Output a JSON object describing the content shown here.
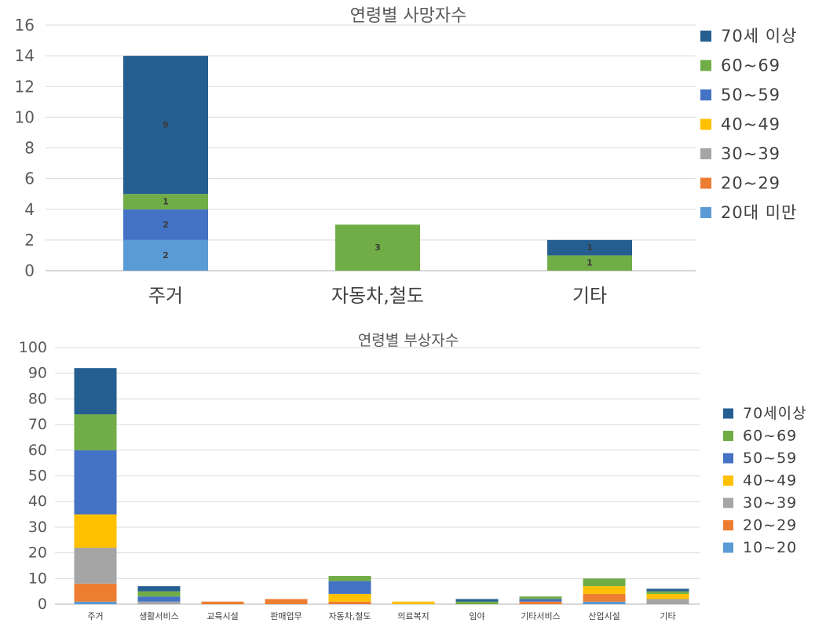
{
  "chart_data": [
    {
      "type": "bar",
      "stacked": true,
      "title": "연령별 사망자수",
      "categories": [
        "주거",
        "자동차,철도",
        "기타"
      ],
      "ylim": [
        0,
        16
      ],
      "yticks": [
        0,
        2,
        4,
        6,
        8,
        10,
        12,
        14,
        16
      ],
      "grid": true,
      "legend_position": "right",
      "data_labels": true,
      "series": [
        {
          "name": "20대 미만",
          "color": "#5B9BD5",
          "values": [
            2,
            0,
            0
          ]
        },
        {
          "name": "20~29",
          "color": "#ED7D31",
          "values": [
            0,
            0,
            0
          ]
        },
        {
          "name": "30~39",
          "color": "#A5A5A5",
          "values": [
            0,
            0,
            0
          ]
        },
        {
          "name": "40~49",
          "color": "#FFC000",
          "values": [
            0,
            0,
            0
          ]
        },
        {
          "name": "50~59",
          "color": "#4472C4",
          "values": [
            2,
            0,
            0
          ]
        },
        {
          "name": "60~69",
          "color": "#70AD47",
          "values": [
            1,
            3,
            1
          ]
        },
        {
          "name": "70세 이상",
          "color": "#255E91",
          "values": [
            9,
            0,
            1
          ]
        }
      ]
    },
    {
      "type": "bar",
      "stacked": true,
      "title": "연령별 부상자수",
      "categories": [
        "주거",
        "생활서비스",
        "교육시설",
        "판매업무",
        "자동차,철도",
        "의료복지",
        "임야",
        "기타서비스",
        "산업시설",
        "기타"
      ],
      "ylim": [
        0,
        100
      ],
      "yticks": [
        0,
        10,
        20,
        30,
        40,
        50,
        60,
        70,
        80,
        90,
        100
      ],
      "grid": true,
      "legend_position": "right",
      "data_labels": false,
      "series": [
        {
          "name": "10~20",
          "color": "#5B9BD5",
          "values": [
            1,
            0,
            0,
            0,
            0,
            0,
            0,
            0,
            1,
            0
          ]
        },
        {
          "name": "20~29",
          "color": "#ED7D31",
          "values": [
            7,
            0,
            1,
            2,
            1,
            0,
            0,
            1,
            3,
            0
          ]
        },
        {
          "name": "30~39",
          "color": "#A5A5A5",
          "values": [
            14,
            1,
            0,
            0,
            0,
            0,
            0,
            0,
            0,
            2
          ]
        },
        {
          "name": "40~49",
          "color": "#FFC000",
          "values": [
            13,
            0,
            0,
            0,
            3,
            1,
            0,
            0,
            3,
            2
          ]
        },
        {
          "name": "50~59",
          "color": "#4472C4",
          "values": [
            25,
            2,
            0,
            0,
            5,
            0,
            0,
            1,
            0,
            0
          ]
        },
        {
          "name": "60~69",
          "color": "#70AD47",
          "values": [
            14,
            2,
            0,
            0,
            2,
            0,
            1,
            1,
            3,
            1
          ]
        },
        {
          "name": "70세이상",
          "color": "#255E91",
          "values": [
            18,
            2,
            0,
            0,
            0,
            0,
            1,
            0,
            0,
            1
          ]
        }
      ]
    }
  ]
}
